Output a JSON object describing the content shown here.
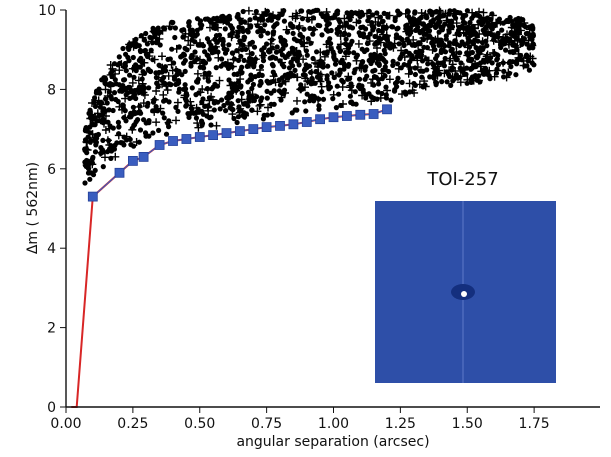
{
  "chart_data": {
    "type": "scatter",
    "xlabel": "angular separation (arcsec)",
    "ylabel": "Δm ( 562nm)",
    "xlim": [
      0,
      2.0
    ],
    "ylim": [
      0,
      10
    ],
    "xticks": [
      "0.00",
      "0.25",
      "0.50",
      "0.75",
      "1.00",
      "1.25",
      "1.50",
      "1.75"
    ],
    "yticks": [
      "0",
      "2",
      "4",
      "6",
      "8",
      "10"
    ],
    "grid": false,
    "annotation": "TOI-257",
    "series": [
      {
        "type": "scatter",
        "marker": "circle",
        "color": "#000000",
        "envelope": {
          "x": [
            0.07,
            0.1,
            0.15,
            0.2,
            0.3,
            0.4,
            0.5,
            0.6,
            0.7,
            0.8,
            0.9,
            1.0,
            1.1,
            1.2,
            1.3,
            1.4,
            1.5,
            1.6,
            1.7,
            1.75
          ],
          "lower": [
            5.6,
            5.8,
            6.0,
            6.3,
            6.7,
            6.9,
            7.0,
            7.1,
            7.2,
            7.3,
            7.4,
            7.5,
            7.6,
            7.7,
            7.9,
            8.0,
            8.1,
            8.2,
            8.4,
            8.5
          ],
          "upper": [
            7.0,
            7.8,
            8.5,
            9.0,
            9.5,
            9.7,
            9.8,
            9.9,
            10.0,
            10.0,
            10.0,
            10.0,
            10.0,
            10.0,
            10.0,
            10.0,
            10.0,
            9.9,
            9.8,
            9.6
          ]
        }
      },
      {
        "type": "scatter",
        "marker": "plus",
        "color": "#000000",
        "envelope": {
          "x": [
            0.07,
            0.1,
            0.15,
            0.2,
            0.3,
            0.4,
            0.5,
            0.6,
            0.7,
            0.8,
            0.9,
            1.0,
            1.1,
            1.2,
            1.3,
            1.4,
            1.5,
            1.6,
            1.7,
            1.75
          ],
          "lower": [
            5.6,
            5.8,
            6.0,
            6.3,
            6.7,
            6.9,
            7.0,
            7.1,
            7.2,
            7.3,
            7.4,
            7.5,
            7.6,
            7.7,
            7.9,
            8.0,
            8.1,
            8.2,
            8.4,
            8.5
          ],
          "upper": [
            7.0,
            7.8,
            8.5,
            9.0,
            9.5,
            9.7,
            9.8,
            9.9,
            10.0,
            10.0,
            10.0,
            10.0,
            10.0,
            10.0,
            10.0,
            10.0,
            10.0,
            9.9,
            9.8,
            9.6
          ]
        }
      },
      {
        "type": "line+markers",
        "marker": "square",
        "color": "#3a5dbf",
        "x": [
          0.1,
          0.2,
          0.25,
          0.29,
          0.35,
          0.4,
          0.45,
          0.5,
          0.55,
          0.6,
          0.65,
          0.7,
          0.75,
          0.8,
          0.85,
          0.9,
          0.95,
          1.0,
          1.05,
          1.1,
          1.15,
          1.2
        ],
        "y": [
          5.3,
          5.9,
          6.2,
          6.3,
          6.6,
          6.7,
          6.75,
          6.8,
          6.85,
          6.9,
          6.95,
          7.0,
          7.05,
          7.08,
          7.12,
          7.18,
          7.25,
          7.3,
          7.33,
          7.36,
          7.38,
          7.5
        ]
      },
      {
        "type": "line",
        "color": "#d82626",
        "x": [
          0.02,
          0.04,
          0.1,
          0.2,
          0.25,
          0.29,
          0.35,
          0.4,
          0.45,
          0.5,
          0.55,
          0.6,
          0.65,
          0.7,
          0.75,
          0.8,
          0.85,
          0.9,
          0.95,
          1.0,
          1.05,
          1.1,
          1.15,
          1.2
        ],
        "y": [
          0.0,
          0.0,
          5.3,
          5.9,
          6.2,
          6.3,
          6.6,
          6.7,
          6.75,
          6.8,
          6.85,
          6.9,
          6.95,
          7.0,
          7.05,
          7.08,
          7.12,
          7.18,
          7.25,
          7.3,
          7.33,
          7.36,
          7.38,
          7.5
        ]
      }
    ]
  },
  "inset": {
    "background": "#2e4fa8",
    "core_color": "#ffffff",
    "shade_color": "#142f7e"
  }
}
